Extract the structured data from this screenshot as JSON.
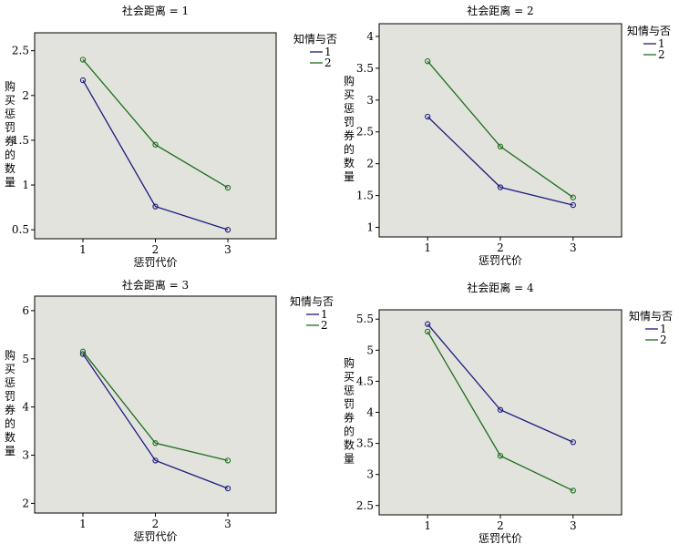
{
  "chart_data": [
    {
      "type": "line",
      "title": "社会距离 = 1",
      "xlabel": "惩罚代价",
      "ylabel": "购买惩罚券的数量",
      "categories": [
        "1",
        "2",
        "3"
      ],
      "ylim": [
        0.4,
        2.7
      ],
      "yticks": [
        "0.5",
        "1",
        "1.5",
        "2",
        "2.5"
      ],
      "legend": {
        "title": "知情与否",
        "position": "top-right"
      },
      "series": [
        {
          "name": "1",
          "color": "#1a1a80",
          "values": [
            2.17,
            0.76,
            0.5
          ]
        },
        {
          "name": "2",
          "color": "#1a6e1a",
          "values": [
            2.4,
            1.45,
            0.97
          ]
        }
      ]
    },
    {
      "type": "line",
      "title": "社会距离 = 2",
      "xlabel": "惩罚代价",
      "ylabel": "购买惩罚券的数量",
      "categories": [
        "1",
        "2",
        "3"
      ],
      "ylim": [
        0.85,
        4.2
      ],
      "yticks": [
        "1",
        "1.5",
        "2",
        "2.5",
        "3",
        "3.5",
        "4"
      ],
      "legend": {
        "title": "知情与否",
        "position": "top-right"
      },
      "series": [
        {
          "name": "1",
          "color": "#1a1a80",
          "values": [
            2.74,
            1.63,
            1.35
          ]
        },
        {
          "name": "2",
          "color": "#1a6e1a",
          "values": [
            3.61,
            2.27,
            1.47
          ]
        }
      ]
    },
    {
      "type": "line",
      "title": "社会距离 = 3",
      "xlabel": "惩罚代价",
      "ylabel": "购买惩罚券的数量",
      "categories": [
        "1",
        "2",
        "3"
      ],
      "ylim": [
        1.8,
        6.3
      ],
      "yticks": [
        "2",
        "3",
        "4",
        "5",
        "6"
      ],
      "legend": {
        "title": "知情与否",
        "position": "top-right"
      },
      "series": [
        {
          "name": "1",
          "color": "#1a1a80",
          "values": [
            5.1,
            2.89,
            2.31
          ]
        },
        {
          "name": "2",
          "color": "#1a6e1a",
          "values": [
            5.15,
            3.25,
            2.89
          ]
        }
      ]
    },
    {
      "type": "line",
      "title": "社会距离 = 4",
      "xlabel": "惩罚代价",
      "ylabel": "购买惩罚券的数量",
      "categories": [
        "1",
        "2",
        "3"
      ],
      "ylim": [
        2.35,
        5.65
      ],
      "yticks": [
        "2.5",
        "3",
        "3.5",
        "4",
        "4.5",
        "5",
        "5.5"
      ],
      "legend": {
        "title": "知情与否",
        "position": "top-right"
      },
      "series": [
        {
          "name": "1",
          "color": "#1a1a80",
          "values": [
            5.42,
            4.04,
            3.52
          ]
        },
        {
          "name": "2",
          "color": "#1a6e1a",
          "values": [
            5.3,
            3.3,
            2.74
          ]
        }
      ]
    }
  ]
}
